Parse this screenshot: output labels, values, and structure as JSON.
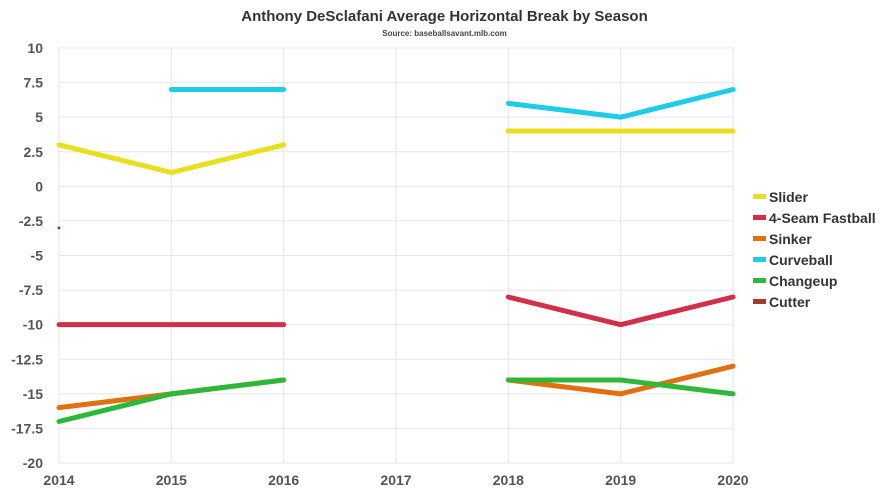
{
  "chart_data": {
    "type": "line",
    "title": "Anthony DeSclafani Average Horizontal Break by Season",
    "subtitle": "Source: baseballsavant.mlb.com",
    "xlabel": "",
    "ylabel": "",
    "x": [
      2014,
      2015,
      2016,
      2017,
      2018,
      2019,
      2020
    ],
    "ylim": [
      -20,
      10
    ],
    "yticks": [
      10,
      7.5,
      5,
      2.5,
      0,
      -2.5,
      -5,
      -7.5,
      -10,
      -12.5,
      -15,
      -17.5,
      -20
    ],
    "grid": true,
    "legend_position": "right",
    "series": [
      {
        "name": "Slider",
        "color": "#e8e01c",
        "values": [
          3,
          1,
          3,
          null,
          4,
          4,
          4
        ]
      },
      {
        "name": "4-Seam Fastball",
        "color": "#d1304a",
        "values": [
          -10,
          -10,
          -10,
          null,
          -8,
          -10,
          -8
        ]
      },
      {
        "name": "Sinker",
        "color": "#e07010",
        "values": [
          -16,
          -15,
          -14,
          null,
          -14,
          -15,
          -13
        ]
      },
      {
        "name": "Curveball",
        "color": "#1ccce8",
        "values": [
          null,
          7,
          7,
          null,
          6,
          5,
          7
        ]
      },
      {
        "name": "Changeup",
        "color": "#2eb83a",
        "values": [
          -17,
          -15,
          -14,
          null,
          -14,
          -14,
          -15
        ]
      },
      {
        "name": "Cutter",
        "color": "#a83a2a",
        "values": [
          -3,
          null,
          null,
          null,
          null,
          null,
          null
        ]
      }
    ]
  }
}
